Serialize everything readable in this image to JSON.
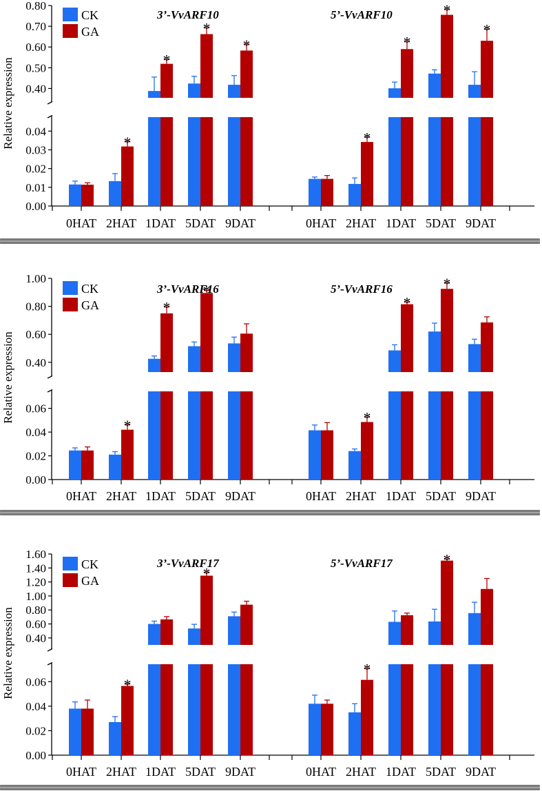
{
  "colors": {
    "CK": "#1f6ff2",
    "GA": "#b40000",
    "axis": "#000000",
    "break": "#ffffff",
    "separator": "#7a7a7a"
  },
  "legend": [
    "CK",
    "GA"
  ],
  "chart_data": [
    {
      "type": "bar",
      "ylabel": "Relative expression",
      "broken_axis": true,
      "upper_ticks": [
        "0.40",
        "0.50",
        "0.60",
        "0.70",
        "0.80"
      ],
      "lower_ticks": [
        "0.00",
        "0.01",
        "0.02",
        "0.03",
        "0.04"
      ],
      "upper_ylim": [
        0.355,
        0.8
      ],
      "lower_ylim": [
        0,
        0.046
      ],
      "panels": [
        {
          "title": "3’-VvARF10",
          "categories": [
            "0HAT",
            "2HAT",
            "1DAT",
            "5DAT",
            "9DAT"
          ],
          "series": [
            {
              "name": "CK",
              "values": [
                0.0115,
                0.0133,
                0.388,
                0.424,
                0.418
              ],
              "errors": [
                0.0018,
                0.004,
                0.067,
                0.035,
                0.044
              ]
            },
            {
              "name": "GA",
              "values": [
                0.0114,
                0.0318,
                0.519,
                0.662,
                0.583
              ],
              "errors": [
                0.001,
                0.0025,
                0.02,
                0.03,
                0.028
              ]
            }
          ],
          "significant": [
            false,
            true,
            true,
            true,
            true
          ]
        },
        {
          "title": "5’-VvARF10",
          "categories": [
            "0HAT",
            "2HAT",
            "1DAT",
            "5DAT",
            "9DAT"
          ],
          "series": [
            {
              "name": "CK",
              "values": [
                0.0145,
                0.0118,
                0.401,
                0.472,
                0.418
              ],
              "errors": [
                0.001,
                0.0032,
                0.03,
                0.018,
                0.063
              ]
            },
            {
              "name": "GA",
              "values": [
                0.0145,
                0.0342,
                0.59,
                0.755,
                0.63
              ],
              "errors": [
                0.0018,
                0.0025,
                0.035,
                0.025,
                0.055
              ]
            }
          ],
          "significant": [
            false,
            true,
            true,
            true,
            true
          ]
        }
      ]
    },
    {
      "type": "bar",
      "ylabel": "Relative expression",
      "broken_axis": true,
      "upper_ticks": [
        "0.40",
        "0.60",
        "0.80",
        "1.00"
      ],
      "lower_ticks": [
        "0.00",
        "0.02",
        "0.04",
        "0.06"
      ],
      "upper_ylim": [
        0.33,
        1.0
      ],
      "lower_ylim": [
        0,
        0.072
      ],
      "panels": [
        {
          "title": "3’-VvARF16",
          "categories": [
            "0HAT",
            "2HAT",
            "1DAT",
            "5DAT",
            "9DAT"
          ],
          "series": [
            {
              "name": "CK",
              "values": [
                0.0245,
                0.021,
                0.425,
                0.515,
                0.535
              ],
              "errors": [
                0.0022,
                0.0025,
                0.02,
                0.03,
                0.045
              ]
            },
            {
              "name": "GA",
              "values": [
                0.0245,
                0.042,
                0.75,
                0.895,
                0.605
              ],
              "errors": [
                0.003,
                0.004,
                0.045,
                0.018,
                0.07
              ]
            }
          ],
          "significant": [
            false,
            true,
            true,
            true,
            false
          ]
        },
        {
          "title": "5’-VvARF16",
          "categories": [
            "0HAT",
            "2HAT",
            "1DAT",
            "5DAT",
            "9DAT"
          ],
          "series": [
            {
              "name": "CK",
              "values": [
                0.0415,
                0.024,
                0.485,
                0.62,
                0.53
              ],
              "errors": [
                0.0045,
                0.0018,
                0.04,
                0.06,
                0.035
              ]
            },
            {
              "name": "GA",
              "values": [
                0.0415,
                0.0485,
                0.815,
                0.925,
                0.685
              ],
              "errors": [
                0.0065,
                0.004,
                0.015,
                0.04,
                0.04
              ]
            }
          ],
          "significant": [
            false,
            true,
            true,
            true,
            false
          ]
        }
      ]
    },
    {
      "type": "bar",
      "ylabel": "Relative expression",
      "broken_axis": true,
      "upper_ticks": [
        "0.40",
        "0.60",
        "0.80",
        "1.00",
        "1.20",
        "1.40",
        "1.60"
      ],
      "lower_ticks": [
        "0.00",
        "0.02",
        "0.04",
        "0.06"
      ],
      "upper_ylim": [
        0.3,
        1.6
      ],
      "lower_ylim": [
        0,
        0.072
      ],
      "panels": [
        {
          "title": "3’-VvARF17",
          "categories": [
            "0HAT",
            "2HAT",
            "1DAT",
            "5DAT",
            "9DAT"
          ],
          "series": [
            {
              "name": "CK",
              "values": [
                0.038,
                0.027,
                0.6,
                0.535,
                0.71
              ],
              "errors": [
                0.0055,
                0.0045,
                0.04,
                0.06,
                0.06
              ]
            },
            {
              "name": "GA",
              "values": [
                0.038,
                0.0565,
                0.665,
                1.29,
                0.875
              ],
              "errors": [
                0.007,
                0.0015,
                0.04,
                0.04,
                0.05
              ]
            }
          ],
          "significant": [
            false,
            true,
            false,
            true,
            false
          ]
        },
        {
          "title": "5’-VvARF17",
          "categories": [
            "0HAT",
            "2HAT",
            "1DAT",
            "5DAT",
            "9DAT"
          ],
          "series": [
            {
              "name": "CK",
              "values": [
                0.042,
                0.035,
                0.63,
                0.635,
                0.755
              ],
              "errors": [
                0.007,
                0.007,
                0.155,
                0.175,
                0.155
              ]
            },
            {
              "name": "GA",
              "values": [
                0.042,
                0.0615,
                0.725,
                1.505,
                1.1
              ],
              "errors": [
                0.003,
                0.009,
                0.03,
                0.02,
                0.15
              ]
            }
          ],
          "significant": [
            false,
            true,
            false,
            true,
            false
          ]
        }
      ]
    }
  ]
}
